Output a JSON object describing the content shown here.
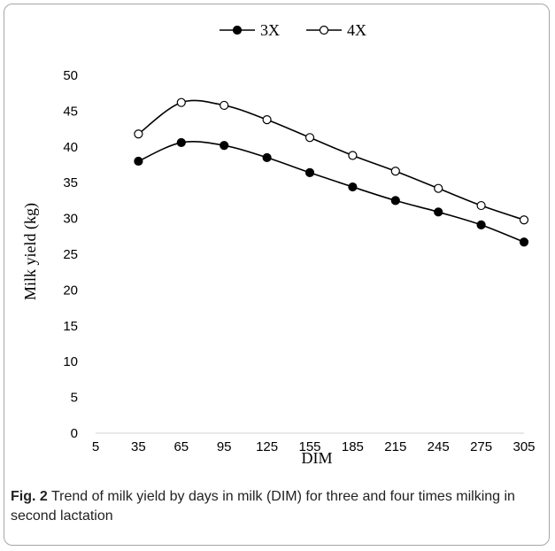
{
  "caption": {
    "label": "Fig. 2",
    "text": "Trend of milk yield by days in milk (DIM) for three and four times milking in second lactation"
  },
  "chart_data": {
    "type": "line",
    "title": "",
    "xlabel": "DIM",
    "ylabel": "Milk yield (kg)",
    "x_ticks": [
      5,
      35,
      65,
      95,
      125,
      155,
      185,
      215,
      245,
      275,
      305
    ],
    "y_ticks": [
      0,
      5,
      10,
      15,
      20,
      25,
      30,
      35,
      40,
      45,
      50
    ],
    "xlim": [
      5,
      305
    ],
    "ylim": [
      0,
      50
    ],
    "x": [
      35,
      65,
      95,
      125,
      155,
      185,
      215,
      245,
      275,
      305
    ],
    "series": [
      {
        "name": "3X",
        "marker": "filled-circle",
        "color": "#000000",
        "values": [
          38.0,
          40.6,
          40.2,
          38.5,
          36.4,
          34.4,
          32.5,
          30.9,
          29.1,
          26.7
        ]
      },
      {
        "name": "4X",
        "marker": "open-circle",
        "color": "#000000",
        "values": [
          41.8,
          46.2,
          45.8,
          43.8,
          41.3,
          38.8,
          36.6,
          34.2,
          31.8,
          29.8
        ]
      }
    ],
    "legend_position": "top-center",
    "grid": false
  }
}
